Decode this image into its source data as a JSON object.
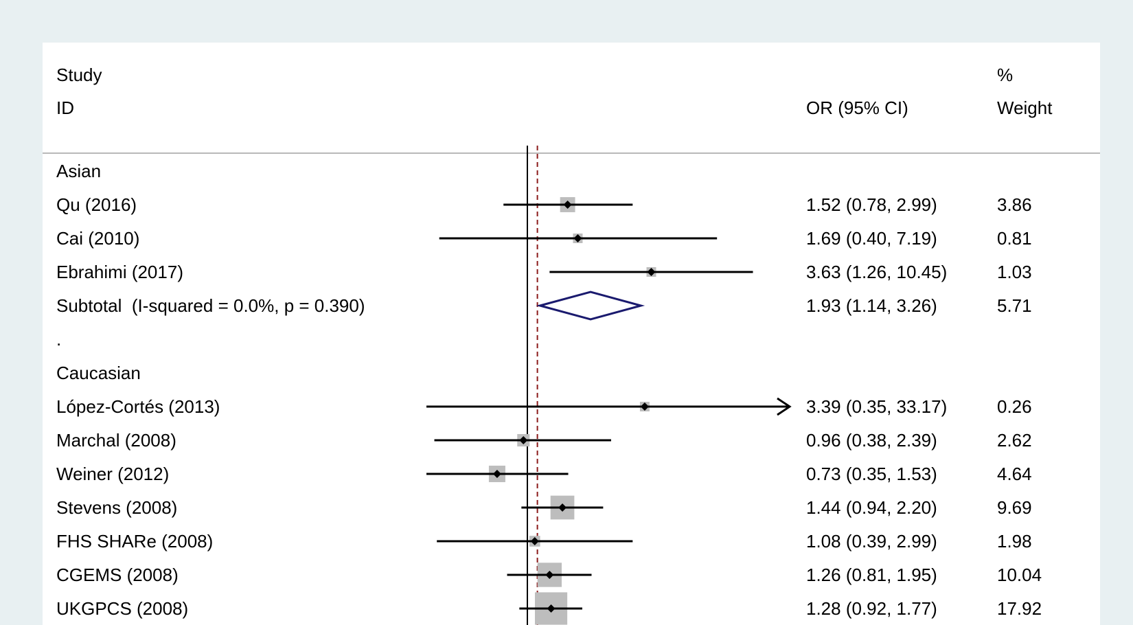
{
  "chart_data": {
    "type": "forest",
    "headers": {
      "study_line1": "Study",
      "study_line2": "ID",
      "or_label": "OR (95% CI)",
      "weight_line1": "%",
      "weight_line2": "Weight"
    },
    "null_value": 1,
    "pooled_overall_or": 1.11,
    "rows": [
      {
        "kind": "group",
        "label": "Asian"
      },
      {
        "kind": "study",
        "label": "Qu (2016)",
        "or": 1.52,
        "lo": 0.78,
        "hi": 2.99,
        "or_text": "1.52 (0.78, 2.99)",
        "weight": 3.86,
        "weight_text": "3.86"
      },
      {
        "kind": "study",
        "label": "Cai (2010)",
        "or": 1.69,
        "lo": 0.4,
        "hi": 7.19,
        "or_text": "1.69 (0.40, 7.19)",
        "weight": 0.81,
        "weight_text": "0.81"
      },
      {
        "kind": "study",
        "label": "Ebrahimi (2017)",
        "or": 3.63,
        "lo": 1.26,
        "hi": 10.45,
        "or_text": "3.63 (1.26, 10.45)",
        "weight": 1.03,
        "weight_text": "1.03"
      },
      {
        "kind": "subtotal",
        "label": "Subtotal  (I-squared = 0.0%, p = 0.390)",
        "or": 1.93,
        "lo": 1.14,
        "hi": 3.26,
        "or_text": "1.93 (1.14, 3.26)",
        "weight": 5.71,
        "weight_text": "5.71"
      },
      {
        "kind": "spacer",
        "label": "."
      },
      {
        "kind": "group",
        "label": "Caucasian"
      },
      {
        "kind": "study",
        "label": "López-Cortés (2013)",
        "or": 3.39,
        "lo": 0.35,
        "hi": 33.17,
        "or_text": "3.39 (0.35, 33.17)",
        "weight": 0.26,
        "weight_text": "0.26",
        "clipped_hi": true
      },
      {
        "kind": "study",
        "label": "Marchal (2008)",
        "or": 0.96,
        "lo": 0.38,
        "hi": 2.39,
        "or_text": "0.96 (0.38, 2.39)",
        "weight": 2.62,
        "weight_text": "2.62"
      },
      {
        "kind": "study",
        "label": "Weiner (2012)",
        "or": 0.73,
        "lo": 0.35,
        "hi": 1.53,
        "or_text": "0.73 (0.35, 1.53)",
        "weight": 4.64,
        "weight_text": "4.64"
      },
      {
        "kind": "study",
        "label": "Stevens (2008)",
        "or": 1.44,
        "lo": 0.94,
        "hi": 2.2,
        "or_text": "1.44 (0.94, 2.20)",
        "weight": 9.69,
        "weight_text": "9.69"
      },
      {
        "kind": "study",
        "label": "FHS SHARe (2008)",
        "or": 1.08,
        "lo": 0.39,
        "hi": 2.99,
        "or_text": "1.08 (0.39, 2.99)",
        "weight": 1.98,
        "weight_text": "1.98"
      },
      {
        "kind": "study",
        "label": "CGEMS (2008)",
        "or": 1.26,
        "lo": 0.81,
        "hi": 1.95,
        "or_text": "1.26 (0.81, 1.95)",
        "weight": 10.04,
        "weight_text": "10.04"
      },
      {
        "kind": "study",
        "label": "UKGPCS (2008)",
        "or": 1.28,
        "lo": 0.92,
        "hi": 1.77,
        "or_text": "1.28 (0.92, 1.77)",
        "weight": 17.92,
        "weight_text": "17.92"
      }
    ],
    "colors": {
      "weight_box": "#bdbdbd",
      "point": "#000000",
      "ci_line": "#000000",
      "null_line": "#000000",
      "pooled_line": "#8b1a1a",
      "diamond": "#1a1a6e"
    },
    "grid": false
  }
}
